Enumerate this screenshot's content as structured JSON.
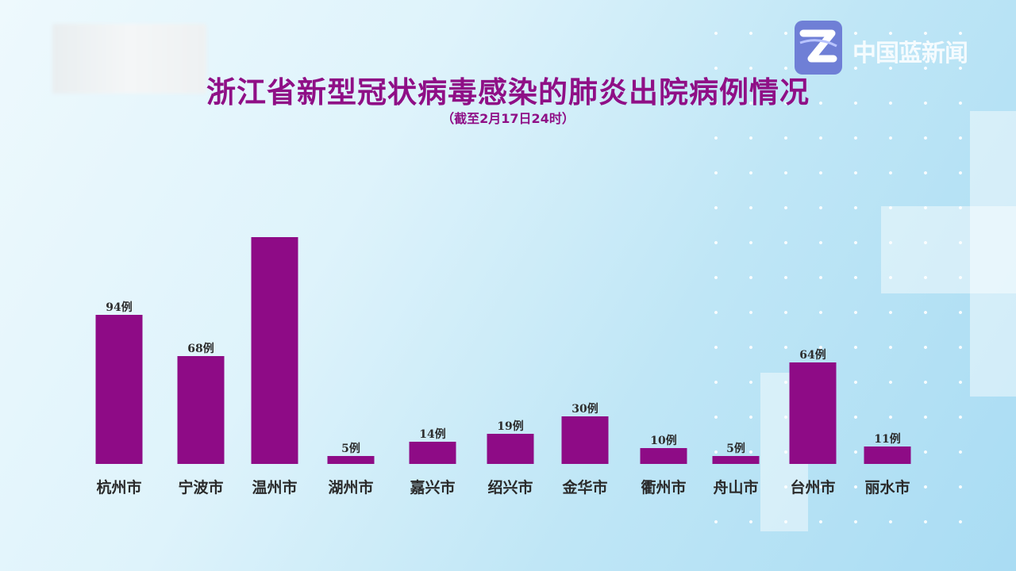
{
  "chart_data": {
    "type": "bar",
    "title": "浙江省新型冠状病毒感染的肺炎出院病例情况",
    "subtitle": "（截至2月17日24时）",
    "categories": [
      "杭州市",
      "宁波市",
      "温州市",
      "湖州市",
      "嘉兴市",
      "绍兴市",
      "金华市",
      "衢州市",
      "舟山市",
      "台州市",
      "丽水市"
    ],
    "values": [
      94,
      68,
      143,
      5,
      14,
      19,
      30,
      10,
      5,
      64,
      11
    ],
    "data_labels": [
      "94例",
      "68例",
      "",
      "5例",
      "14例",
      "19例",
      "30例",
      "10例",
      "5例",
      "64例",
      "11例"
    ],
    "bar_color": "#8e0b86",
    "ylim": [
      0,
      150
    ],
    "grid": false,
    "legend": "none"
  },
  "branding": {
    "channel_logo_icon": "zhejiang-tv-z-logo",
    "brand_text": "中国蓝新闻"
  }
}
